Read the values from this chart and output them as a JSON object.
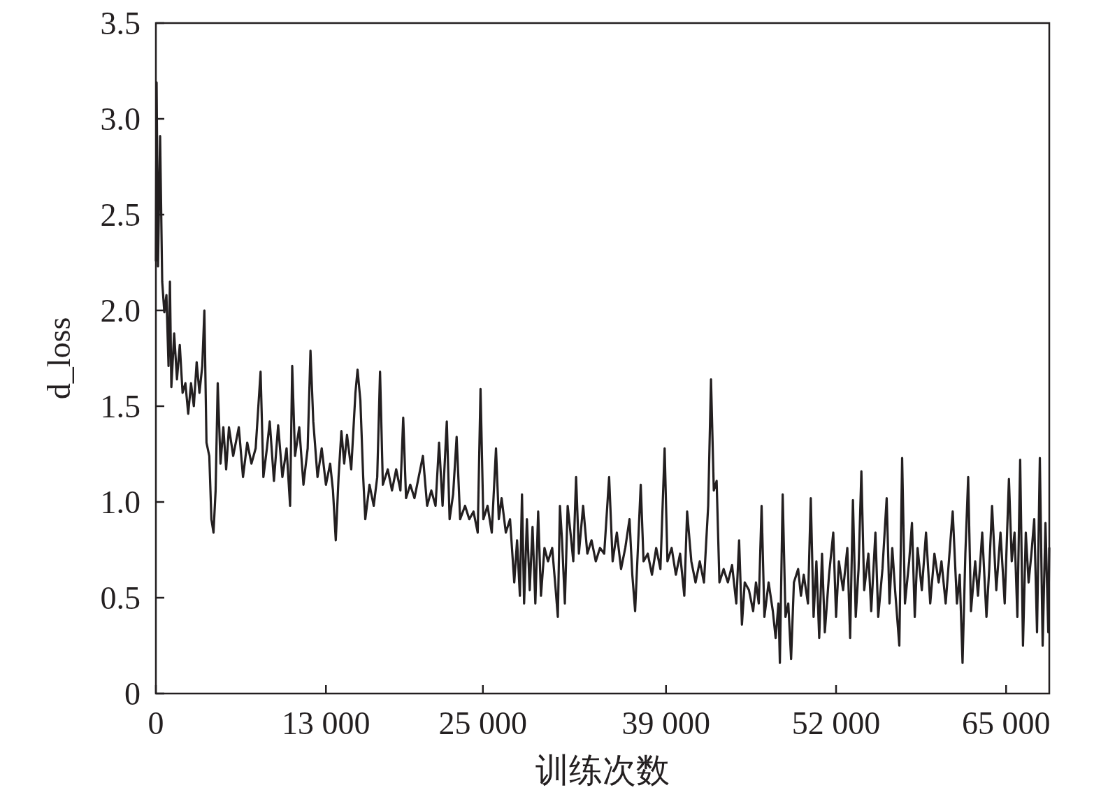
{
  "chart_data": {
    "type": "line",
    "xlabel": "训练次数",
    "ylabel": "d_loss",
    "xlim": [
      0,
      68300
    ],
    "ylim": [
      0,
      3.5
    ],
    "xticks": [
      0,
      {
        "value": 13000,
        "label": "13 000"
      },
      {
        "value": 25000,
        "label": "25 000"
      },
      {
        "value": 39000,
        "label": "39 000"
      },
      {
        "value": 52000,
        "label": "52 000"
      },
      {
        "value": 65000,
        "label": "65 000"
      }
    ],
    "yticks": [
      0,
      0.5,
      {
        "value": 1,
        "label": "1.0"
      },
      1.5,
      {
        "value": 2,
        "label": "2.0"
      },
      2.5,
      {
        "value": 3,
        "label": "3.0"
      },
      3.5
    ],
    "x": [
      0,
      54,
      161,
      322,
      483,
      645,
      806,
      967,
      1074,
      1182,
      1397,
      1612,
      1826,
      2041,
      2256,
      2471,
      2686,
      2901,
      3116,
      3331,
      3546,
      3707,
      3868,
      4083,
      4244,
      4405,
      4566,
      4727,
      4942,
      5157,
      5372,
      5587,
      5909,
      6339,
      6661,
      6984,
      7306,
      7628,
      8004,
      8219,
      8488,
      8703,
      9025,
      9347,
      9670,
      9992,
      10260,
      10422,
      10637,
      10959,
      11281,
      11604,
      11819,
      12034,
      12356,
      12678,
      13000,
      13323,
      13538,
      13752,
      13967,
      14182,
      14397,
      14612,
      14934,
      15256,
      15418,
      15633,
      15848,
      16009,
      16331,
      16654,
      16922,
      17137,
      17352,
      17728,
      18050,
      18372,
      18695,
      18909,
      19124,
      19447,
      19769,
      20091,
      20414,
      20736,
      21058,
      21380,
      21649,
      21918,
      22240,
      22455,
      22724,
      22992,
      23261,
      23637,
      23960,
      24282,
      24604,
      24819,
      25034,
      25356,
      25679,
      26001,
      26216,
      26431,
      26753,
      27075,
      27398,
      27613,
      27828,
      27989,
      28150,
      28365,
      28580,
      28795,
      29010,
      29225,
      29439,
      29708,
      29977,
      30299,
      30568,
      30729,
      30890,
      31051,
      31266,
      31481,
      31696,
      31911,
      32125,
      32340,
      32663,
      32985,
      33307,
      33630,
      33952,
      34274,
      34650,
      34919,
      35241,
      35563,
      35885,
      36208,
      36423,
      36638,
      36853,
      37067,
      37282,
      37605,
      37927,
      38249,
      38572,
      38894,
      39109,
      39431,
      39753,
      40076,
      40398,
      40613,
      40935,
      41257,
      41580,
      41902,
      42224,
      42439,
      42654,
      42869,
      43083,
      43406,
      43728,
      44050,
      44373,
      44588,
      44803,
      45017,
      45340,
      45662,
      45877,
      46092,
      46307,
      46522,
      46844,
      47166,
      47381,
      47596,
      47704,
      47919,
      48133,
      48348,
      48563,
      48778,
      49100,
      49315,
      49530,
      49852,
      50067,
      50282,
      50497,
      50712,
      50926,
      51141,
      51464,
      51786,
      52001,
      52216,
      52538,
      52861,
      53076,
      53290,
      53505,
      53720,
      53935,
      54150,
      54472,
      54687,
      55009,
      55224,
      55547,
      55869,
      56084,
      56298,
      56513,
      56836,
      57051,
      57266,
      57588,
      57803,
      58017,
      58232,
      58555,
      58877,
      59199,
      59521,
      59844,
      60059,
      60381,
      60703,
      60918,
      61240,
      61455,
      61670,
      61885,
      62100,
      62315,
      62637,
      62852,
      63174,
      63497,
      63711,
      63926,
      64249,
      64571,
      64893,
      65216,
      65431,
      65646,
      65861,
      66075,
      66290,
      66505,
      66720,
      66935,
      67150,
      67364,
      67579,
      67794,
      68009,
      68224,
      68300
    ],
    "series": [
      {
        "color": "#231f20",
        "values": [
          2.26,
          3.19,
          2.23,
          2.91,
          2.15,
          1.99,
          2.08,
          1.71,
          2.15,
          1.6,
          1.88,
          1.64,
          1.82,
          1.57,
          1.62,
          1.46,
          1.62,
          1.5,
          1.73,
          1.57,
          1.71,
          2.0,
          1.31,
          1.24,
          0.91,
          0.84,
          1.06,
          1.62,
          1.2,
          1.39,
          1.17,
          1.39,
          1.24,
          1.39,
          1.13,
          1.31,
          1.2,
          1.28,
          1.68,
          1.13,
          1.28,
          1.42,
          1.11,
          1.4,
          1.13,
          1.28,
          0.98,
          1.71,
          1.24,
          1.39,
          1.09,
          1.28,
          1.79,
          1.42,
          1.13,
          1.28,
          1.09,
          1.2,
          1.06,
          0.8,
          1.13,
          1.37,
          1.2,
          1.35,
          1.17,
          1.57,
          1.69,
          1.53,
          1.13,
          0.91,
          1.09,
          0.98,
          1.13,
          1.68,
          1.09,
          1.17,
          1.06,
          1.17,
          1.06,
          1.44,
          1.02,
          1.09,
          1.02,
          1.13,
          1.24,
          0.98,
          1.06,
          0.98,
          1.31,
          0.98,
          1.42,
          0.91,
          1.04,
          1.34,
          0.91,
          0.98,
          0.91,
          0.95,
          0.84,
          1.59,
          0.91,
          0.98,
          0.84,
          1.28,
          0.91,
          1.02,
          0.84,
          0.91,
          0.58,
          0.8,
          0.51,
          1.04,
          0.47,
          0.91,
          0.54,
          0.87,
          0.47,
          0.95,
          0.51,
          0.76,
          0.69,
          0.76,
          0.54,
          0.4,
          0.98,
          0.8,
          0.47,
          0.98,
          0.84,
          0.69,
          1.13,
          0.73,
          0.98,
          0.73,
          0.8,
          0.69,
          0.76,
          0.73,
          1.13,
          0.69,
          0.84,
          0.65,
          0.76,
          0.91,
          0.62,
          0.43,
          0.76,
          1.09,
          0.69,
          0.73,
          0.62,
          0.76,
          0.65,
          1.28,
          0.69,
          0.76,
          0.62,
          0.73,
          0.51,
          0.95,
          0.69,
          0.58,
          0.69,
          0.58,
          0.98,
          1.64,
          1.06,
          1.11,
          0.58,
          0.65,
          0.58,
          0.67,
          0.47,
          0.8,
          0.36,
          0.58,
          0.54,
          0.43,
          0.58,
          0.47,
          0.98,
          0.4,
          0.58,
          0.43,
          0.29,
          0.47,
          0.16,
          1.04,
          0.4,
          0.47,
          0.18,
          0.58,
          0.65,
          0.51,
          0.62,
          0.47,
          1.02,
          0.4,
          0.69,
          0.29,
          0.73,
          0.32,
          0.62,
          0.84,
          0.4,
          0.69,
          0.54,
          0.76,
          0.29,
          1.01,
          0.4,
          0.65,
          1.16,
          0.54,
          0.73,
          0.43,
          0.84,
          0.4,
          0.65,
          1.02,
          0.47,
          0.76,
          0.54,
          0.25,
          1.23,
          0.47,
          0.69,
          0.89,
          0.4,
          0.76,
          0.54,
          0.84,
          0.47,
          0.73,
          0.58,
          0.69,
          0.47,
          0.76,
          0.95,
          0.47,
          0.62,
          0.16,
          0.73,
          1.13,
          0.43,
          0.69,
          0.51,
          0.84,
          0.4,
          0.65,
          0.98,
          0.54,
          0.84,
          0.47,
          1.12,
          0.69,
          0.84,
          0.4,
          1.22,
          0.25,
          0.84,
          0.58,
          0.73,
          0.91,
          0.32,
          1.23,
          0.25,
          0.89,
          0.32,
          0.76
        ]
      }
    ]
  }
}
